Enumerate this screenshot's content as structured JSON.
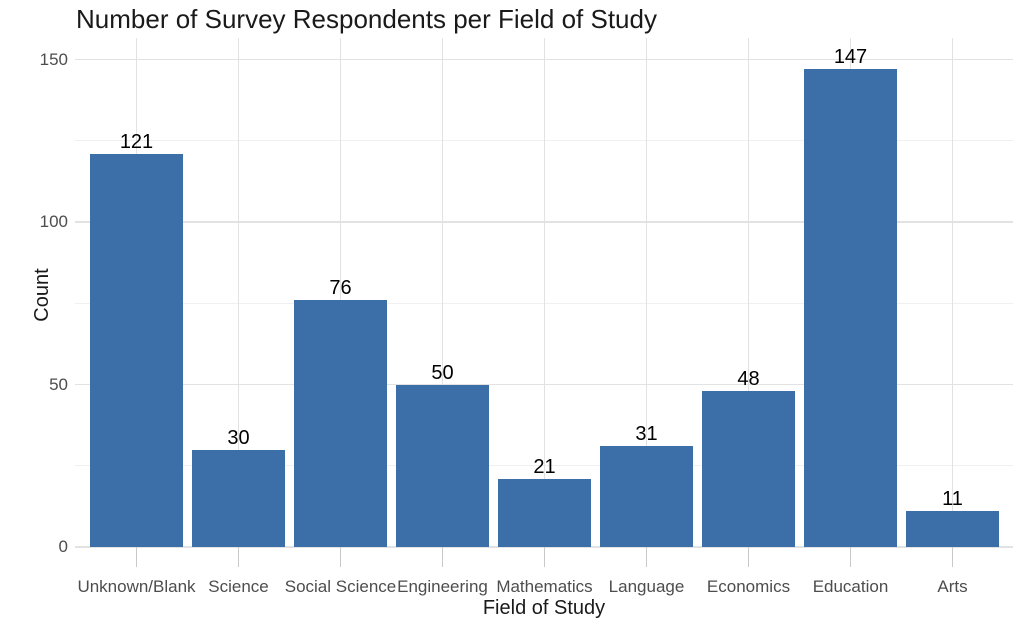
{
  "chart_data": {
    "type": "bar",
    "title": "Number of Survey Respondents per Field of Study",
    "xlabel": "Field of Study",
    "ylabel": "Count",
    "categories": [
      "Unknown/Blank",
      "Science",
      "Social Science",
      "Engineering",
      "Mathematics",
      "Language",
      "Economics",
      "Education",
      "Arts"
    ],
    "values": [
      121,
      30,
      76,
      50,
      21,
      31,
      48,
      147,
      11
    ],
    "yticks": [
      0,
      50,
      100,
      150
    ],
    "minor_yticks": [
      25,
      75,
      125
    ],
    "ylim": [
      0,
      157
    ],
    "grid": true,
    "legend": "none",
    "value_labels": true,
    "colors": {
      "bar": "#3c6fa7",
      "grid_major": "#e2e2e2",
      "grid_minor": "#f0f0f0",
      "axis_tick": "#c9c9c9",
      "tick_label": "#4d4d4d",
      "text": "#1a1a1a"
    }
  }
}
